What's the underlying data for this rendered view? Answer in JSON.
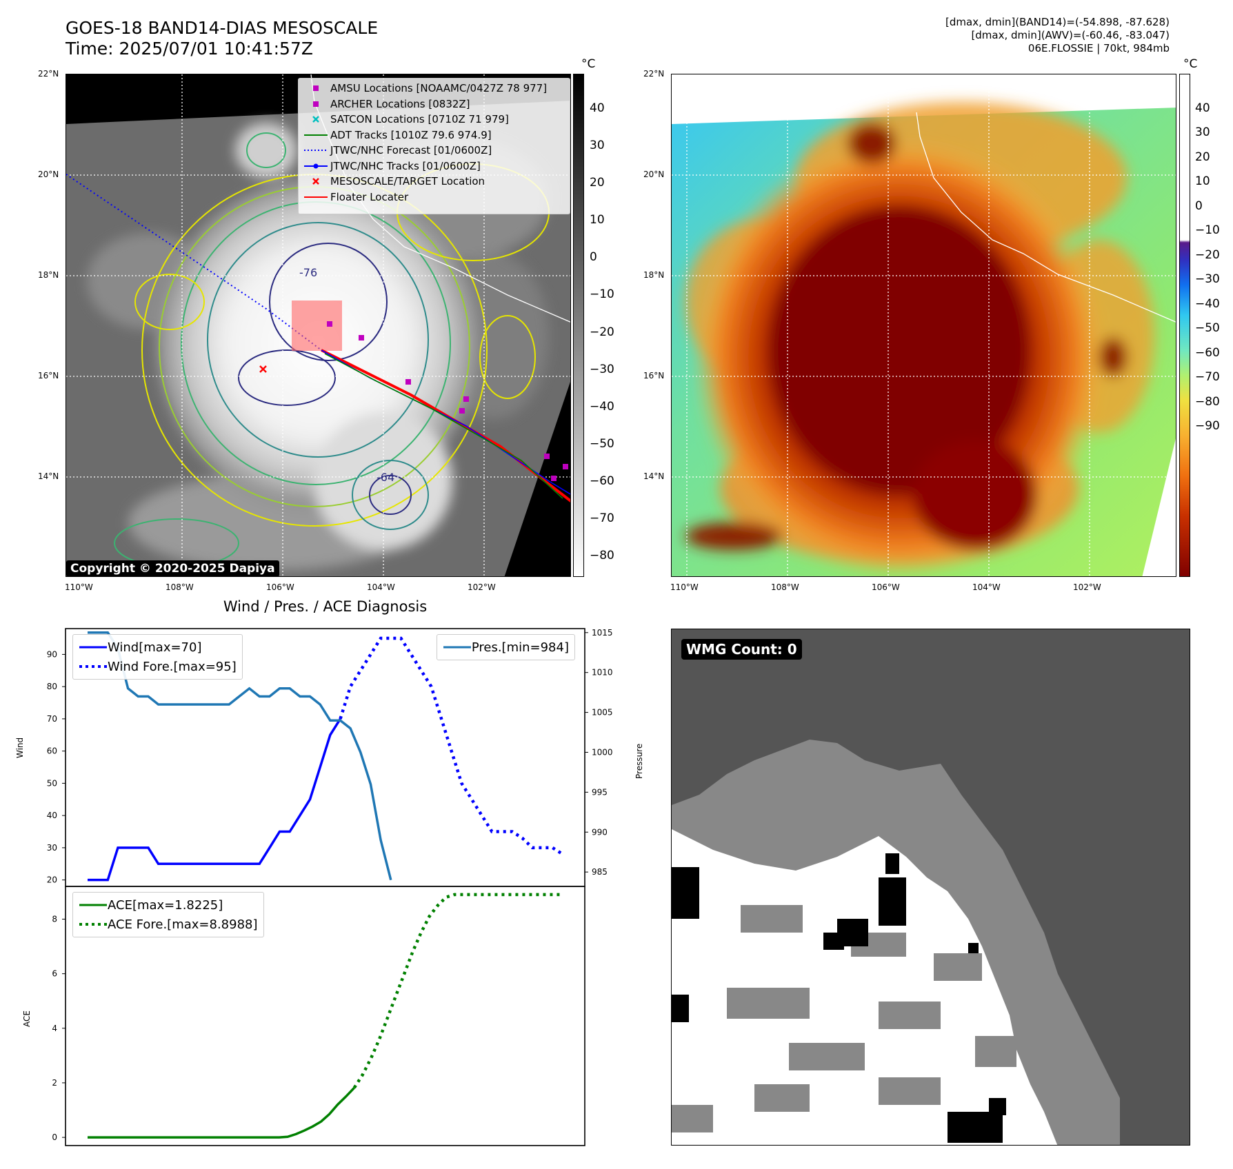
{
  "header": {
    "title_line1": "GOES-18 BAND14-DIAS MESOSCALE",
    "title_line2": "Time: 2025/07/01 10:41:57Z",
    "info_line1": "[dmax, dmin](BAND14)=(-54.898, -87.628)",
    "info_line2": "[dmax, dmin](AWV)=(-60.46, -83.047)",
    "info_line3": "06E.FLOSSIE | 70kt, 984mb"
  },
  "map_left": {
    "lat_labels": [
      "22°N",
      "20°N",
      "18°N",
      "16°N",
      "14°N"
    ],
    "lon_labels": [
      "110°W",
      "108°W",
      "106°W",
      "104°W",
      "102°W"
    ],
    "contour_labels": [
      "-76",
      "-64",
      "-76"
    ],
    "copyright": "Copyright © 2020-2025 Dapiya",
    "legend": [
      {
        "label": "AMSU Locations [NOAAMC/0427Z 78 977]",
        "symbol": "square",
        "color": "#bf00bf"
      },
      {
        "label": "ARCHER Locations [0832Z]",
        "symbol": "square",
        "color": "#bf00bf"
      },
      {
        "label": "SATCON Locations [0710Z 71 979]",
        "symbol": "x",
        "color": "#00bfbf"
      },
      {
        "label": "ADT Tracks [1010Z 79.6 974.9]",
        "symbol": "line",
        "color": "#008000"
      },
      {
        "label": "JTWC/NHC Forecast [01/0600Z]",
        "symbol": "dotted",
        "color": "#0000ff"
      },
      {
        "label": "JTWC/NHC Tracks [01/0600Z]",
        "symbol": "line-dot",
        "color": "#0000ff"
      },
      {
        "label": "MESOSCALE/TARGET Location",
        "symbol": "x",
        "color": "#ff0000"
      },
      {
        "label": "Floater Locater",
        "symbol": "line",
        "color": "#ff0000"
      }
    ],
    "colorbar": {
      "unit": "°C",
      "ticks": [
        "40",
        "30",
        "20",
        "10",
        "0",
        "−10",
        "−20",
        "−30",
        "−40",
        "−50",
        "−60",
        "−70",
        "−80"
      ]
    }
  },
  "map_right": {
    "lat_labels": [
      "22°N",
      "20°N",
      "18°N",
      "16°N",
      "14°N"
    ],
    "lon_labels": [
      "110°W",
      "108°W",
      "106°W",
      "104°W",
      "102°W"
    ],
    "colorbar": {
      "unit": "°C",
      "ticks": [
        "40",
        "30",
        "20",
        "10",
        "0",
        "−10",
        "−20",
        "−30",
        "−40",
        "−50",
        "−60",
        "−70",
        "−80",
        "−90"
      ]
    }
  },
  "wmg": {
    "label": "WMG Count: 0"
  },
  "colors": {
    "wind": "#0000ff",
    "pressure": "#1f77b4",
    "ace": "#008000"
  },
  "chart_data": [
    {
      "type": "line",
      "title": "Wind / Pres. / ACE Diagnosis",
      "ylabel": "Wind",
      "y2label": "Pressure",
      "ylim": [
        18,
        98
      ],
      "y2lim": [
        983.2,
        1015.5
      ],
      "yticks": [
        20,
        30,
        40,
        50,
        60,
        70,
        80,
        90
      ],
      "y2ticks": [
        985,
        990,
        995,
        1000,
        1005,
        1010,
        1015
      ],
      "series": [
        {
          "name": "Wind[max=70]",
          "axis": "left",
          "style": "solid",
          "values": [
            20,
            20,
            20,
            30,
            30,
            30,
            30,
            25,
            25,
            25,
            25,
            25,
            25,
            25,
            25,
            25,
            25,
            25,
            30,
            35,
            35,
            40,
            45,
            55,
            65,
            70
          ]
        },
        {
          "name": "Wind Fore.[max=95]",
          "axis": "left",
          "style": "dotted",
          "values": [
            null,
            null,
            null,
            null,
            null,
            null,
            null,
            null,
            null,
            null,
            null,
            null,
            null,
            null,
            null,
            null,
            null,
            null,
            null,
            null,
            null,
            null,
            null,
            null,
            null,
            70,
            80,
            85,
            90,
            95,
            95,
            95,
            90,
            85,
            80,
            70,
            60,
            50,
            45,
            40,
            35,
            35,
            35,
            33,
            30,
            30,
            30,
            28
          ]
        },
        {
          "name": "Pres.[min=984]",
          "axis": "right",
          "style": "solid",
          "values": [
            1015,
            1015,
            1015,
            1013,
            1008,
            1007,
            1007,
            1006,
            1006,
            1006,
            1006,
            1006,
            1006,
            1006,
            1006,
            1007,
            1008,
            1007,
            1007,
            1008,
            1008,
            1007,
            1007,
            1006,
            1004,
            1004,
            1003,
            1000,
            996,
            989,
            984
          ]
        }
      ]
    },
    {
      "type": "line",
      "ylabel": "ACE",
      "ylim": [
        -0.3,
        9.2
      ],
      "yticks": [
        0,
        2,
        4,
        6,
        8
      ],
      "series": [
        {
          "name": "ACE[max=1.8225]",
          "style": "solid",
          "values": [
            0,
            0,
            0,
            0,
            0,
            0,
            0,
            0,
            0,
            0,
            0,
            0,
            0,
            0,
            0,
            0,
            0,
            0,
            0,
            0,
            0,
            0,
            0,
            0,
            0.02,
            0.12,
            0.25,
            0.4,
            0.58,
            0.85,
            1.2,
            1.5,
            1.82
          ]
        },
        {
          "name": "ACE Fore.[max=8.8988]",
          "style": "dotted",
          "values": [
            null,
            null,
            null,
            null,
            null,
            null,
            null,
            null,
            null,
            null,
            null,
            null,
            null,
            null,
            null,
            null,
            null,
            null,
            null,
            null,
            null,
            null,
            null,
            null,
            null,
            null,
            null,
            null,
            null,
            null,
            null,
            null,
            1.82,
            2.3,
            2.9,
            3.6,
            4.4,
            5.2,
            6.0,
            6.8,
            7.5,
            8.1,
            8.5,
            8.8,
            8.9,
            8.9,
            8.9,
            8.9,
            8.9,
            8.9,
            8.9,
            8.9,
            8.9,
            8.9,
            8.9,
            8.9,
            8.9,
            8.9
          ]
        }
      ]
    }
  ]
}
